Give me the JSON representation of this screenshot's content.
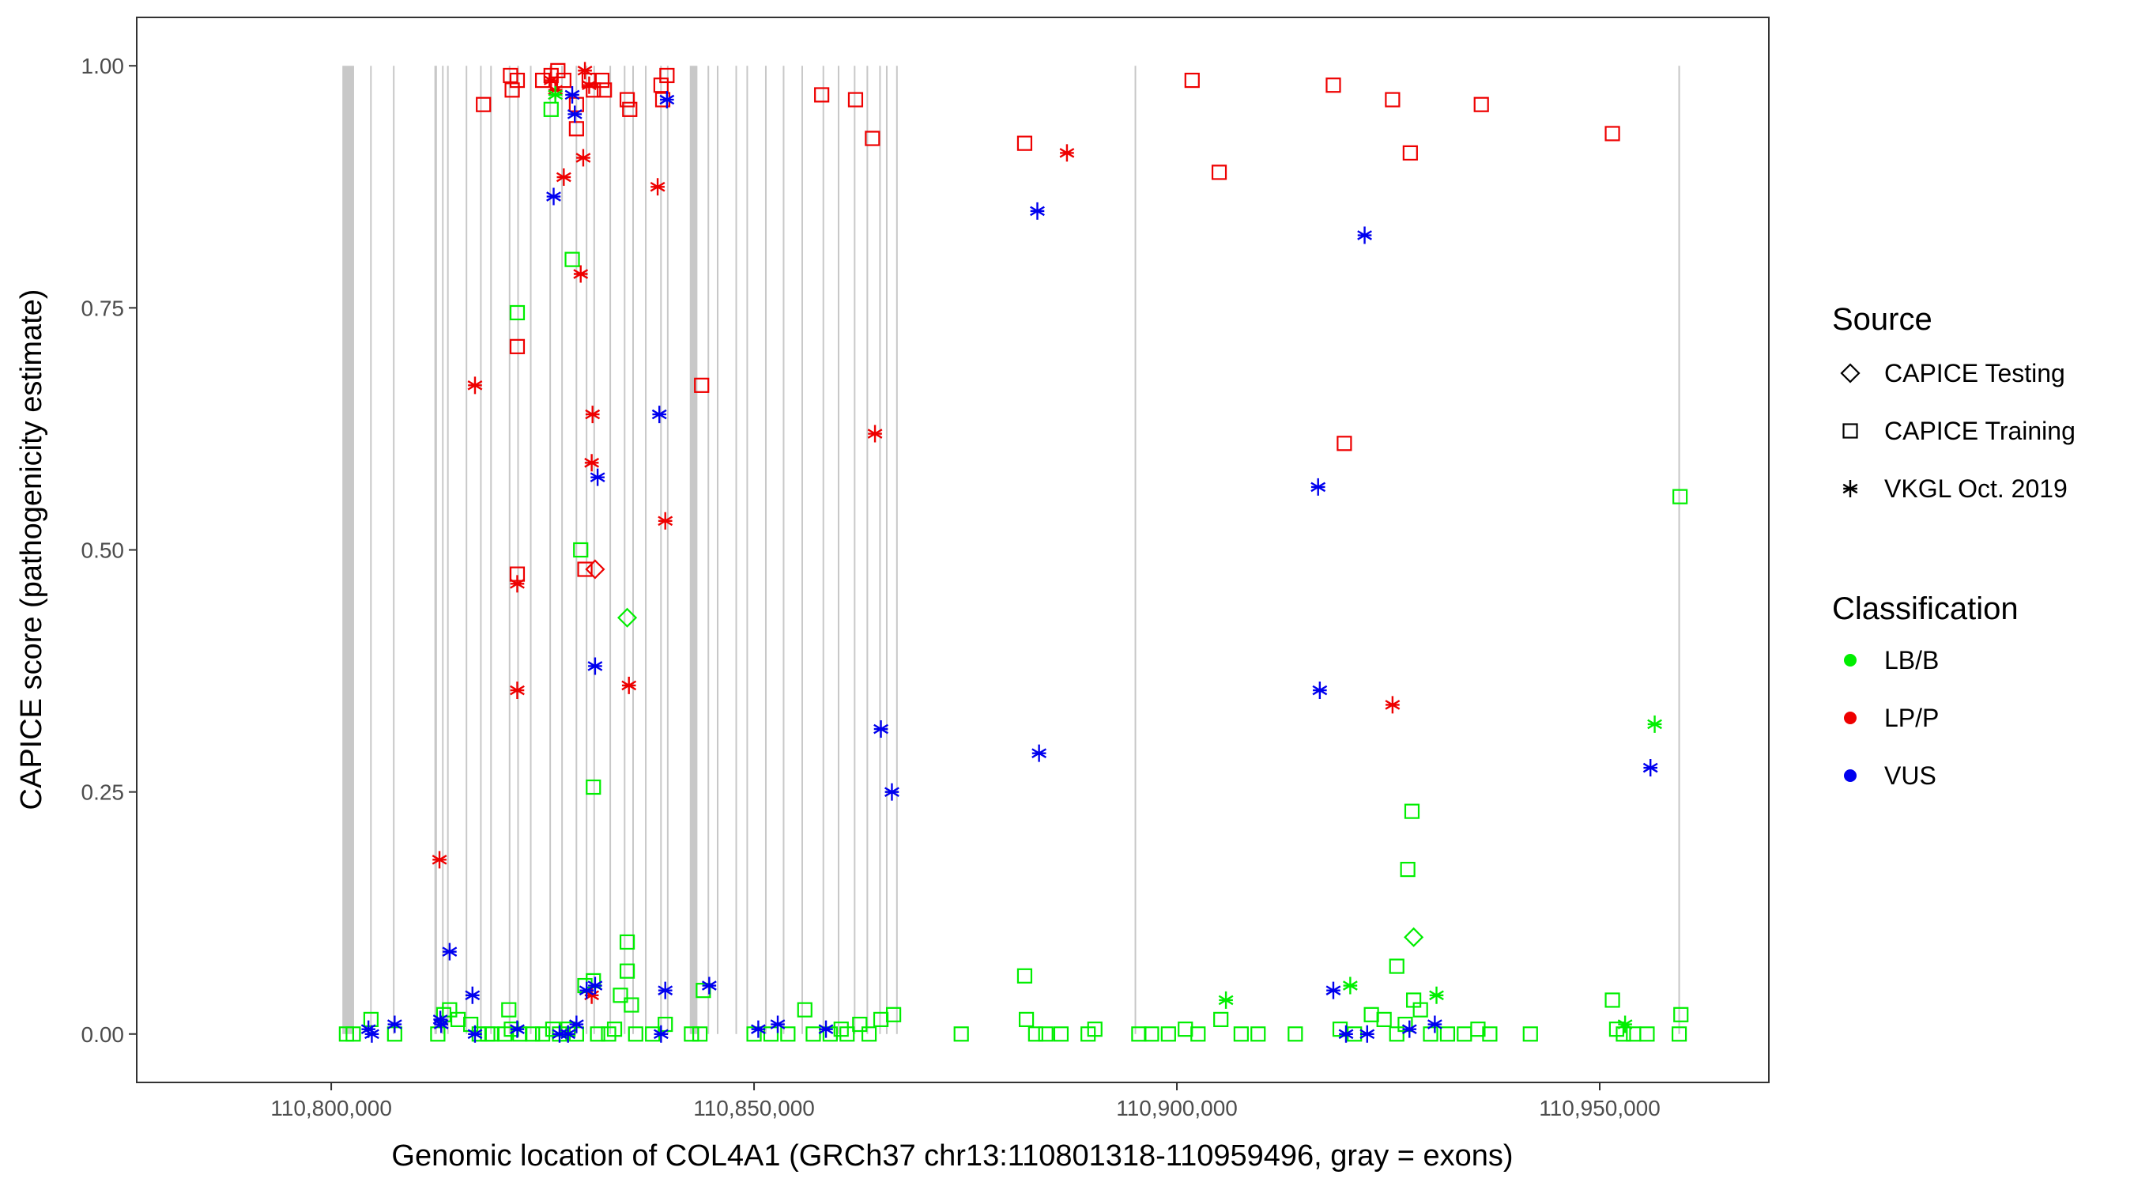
{
  "chart_data": {
    "type": "scatter",
    "title": "",
    "xlabel": "Genomic location of COL4A1 (GRCh37 chr13:110801318-110959496, gray = exons)",
    "ylabel": "CAPICE score (pathogenicity estimate)",
    "xlim": [
      110777000,
      110970000
    ],
    "ylim": [
      -0.05,
      1.05
    ],
    "x_ticks": [
      110800000,
      110850000,
      110900000,
      110950000
    ],
    "x_tick_labels": [
      "110,800,000",
      "110,850,000",
      "110,900,000",
      "110,950,000"
    ],
    "y_ticks": [
      0,
      0.25,
      0.5,
      0.75,
      1
    ],
    "y_tick_labels": [
      "0.00",
      "0.25",
      "0.50",
      "0.75",
      "1.00"
    ],
    "exons": [
      [
        110801318,
        110802700
      ],
      [
        110804600,
        110804750
      ],
      [
        110807300,
        110807450
      ],
      [
        110812200,
        110812500
      ],
      [
        110813100,
        110813250
      ],
      [
        110813700,
        110813850
      ],
      [
        110815900,
        110816050
      ],
      [
        110817600,
        110817750
      ],
      [
        110818800,
        110818950
      ],
      [
        110821000,
        110821150
      ],
      [
        110822000,
        110822150
      ],
      [
        110823500,
        110823650
      ],
      [
        110825800,
        110825950
      ],
      [
        110827200,
        110827350
      ],
      [
        110828900,
        110829050
      ],
      [
        110830100,
        110830250
      ],
      [
        110831000,
        110831150
      ],
      [
        110832900,
        110833050
      ],
      [
        110834600,
        110834750
      ],
      [
        110835600,
        110835750
      ],
      [
        110837100,
        110837250
      ],
      [
        110838900,
        110839050
      ],
      [
        110839700,
        110839850
      ],
      [
        110842400,
        110843300
      ],
      [
        110844500,
        110844650
      ],
      [
        110845600,
        110845750
      ],
      [
        110847800,
        110847950
      ],
      [
        110849100,
        110849250
      ],
      [
        110851300,
        110851450
      ],
      [
        110853400,
        110853550
      ],
      [
        110855600,
        110855750
      ],
      [
        110858100,
        110858250
      ],
      [
        110859900,
        110860050
      ],
      [
        110861800,
        110861950
      ],
      [
        110863300,
        110863450
      ],
      [
        110864800,
        110864950
      ],
      [
        110865600,
        110865750
      ],
      [
        110866800,
        110866950
      ],
      [
        110895000,
        110895150
      ],
      [
        110959300,
        110959496
      ]
    ],
    "series": [
      {
        "name": "CAPICE Testing",
        "shape": "diamond",
        "classification": "LP/P",
        "x": [
          110831200
        ],
        "y": [
          0.48
        ]
      },
      {
        "name": "CAPICE Testing",
        "shape": "diamond",
        "classification": "LB/B",
        "x": [
          110835000,
          110928000
        ],
        "y": [
          0.43,
          0.1
        ]
      },
      {
        "name": "CAPICE Training",
        "shape": "square",
        "classification": "LP/P",
        "x": [
          110818000,
          110821200,
          110821400,
          110822000,
          110825000,
          110826000,
          110826800,
          110827500,
          110829000,
          110830500,
          110831000,
          110832000,
          110832300,
          110835000,
          110835300,
          110839000,
          110839200,
          110839700,
          110843800,
          110858000,
          110862000,
          110864000,
          110882000,
          110901800,
          110905000,
          110918500,
          110925500,
          110927600,
          110936000,
          110951500,
          110829000,
          110822000,
          110822000,
          110830000,
          110919800
        ],
        "y": [
          0.96,
          0.99,
          0.975,
          0.985,
          0.985,
          0.99,
          0.995,
          0.985,
          0.935,
          0.985,
          0.975,
          0.985,
          0.975,
          0.965,
          0.955,
          0.98,
          0.965,
          0.99,
          0.67,
          0.97,
          0.965,
          0.925,
          0.92,
          0.985,
          0.89,
          0.98,
          0.965,
          0.91,
          0.96,
          0.93,
          0.96,
          0.71,
          0.475,
          0.48,
          0.61
        ]
      },
      {
        "name": "CAPICE Training",
        "shape": "square",
        "classification": "LB/B",
        "x": [
          110826000,
          110828500,
          110829500,
          110822000,
          110831000,
          110835000,
          110830000,
          110831000,
          110835000,
          110835500,
          110821000,
          110844000,
          110856000,
          110882000,
          110926000,
          110927800,
          110927300,
          110959500,
          110951500,
          110928000,
          110959600,
          110801800,
          110802600,
          110804700,
          110807500,
          110812600,
          110813300,
          110814000,
          110815000,
          110816500,
          110817500,
          110818500,
          110819000,
          110820500,
          110821300,
          110822300,
          110823800,
          110825000,
          110826200,
          110827000,
          110828000,
          110829000,
          110831500,
          110832800,
          110833500,
          110834200,
          110836000,
          110838000,
          110839500,
          110842600,
          110843600,
          110850000,
          110852000,
          110854000,
          110857000,
          110859000,
          110860300,
          110861000,
          110862500,
          110863600,
          110865000,
          110866500,
          110874500,
          110882200,
          110883300,
          110884500,
          110886300,
          110889500,
          110890300,
          110895500,
          110897000,
          110899000,
          110901000,
          110902500,
          110905200,
          110907600,
          110909600,
          110914000,
          110919300,
          110921000,
          110923000,
          110924500,
          110926000,
          110927000,
          110928800,
          110930000,
          110932000,
          110934000,
          110935600,
          110937000,
          110941800,
          110952000,
          110952800,
          110954000,
          110955600,
          110959400
        ],
        "y": [
          0.955,
          0.8,
          0.5,
          0.745,
          0.255,
          0.095,
          0.05,
          0.055,
          0.065,
          0.03,
          0.025,
          0.045,
          0.025,
          0.06,
          0.07,
          0.23,
          0.17,
          0.555,
          0.035,
          0.035,
          0.02,
          0.0,
          0.0,
          0.015,
          0.0,
          0.0,
          0.02,
          0.025,
          0.015,
          0.01,
          0.0,
          0.0,
          0.0,
          0.0,
          0.005,
          0.0,
          0.0,
          0.0,
          0.005,
          0.0,
          0.005,
          0.0,
          0.0,
          0.0,
          0.005,
          0.04,
          0.0,
          0.0,
          0.01,
          0.0,
          0.0,
          0.0,
          0.0,
          0.0,
          0.0,
          0.0,
          0.005,
          0.0,
          0.01,
          0.0,
          0.015,
          0.02,
          0.0,
          0.015,
          0.0,
          0.0,
          0.0,
          0.0,
          0.005,
          0.0,
          0.0,
          0.0,
          0.005,
          0.0,
          0.015,
          0.0,
          0.0,
          0.0,
          0.005,
          0.0,
          0.02,
          0.015,
          0.0,
          0.01,
          0.025,
          0.0,
          0.0,
          0.0,
          0.005,
          0.0,
          0.0,
          0.005,
          0.0,
          0.0,
          0.0,
          0.0
        ]
      },
      {
        "name": "VKGL Oct. 2019",
        "shape": "asterisk",
        "classification": "LP/P",
        "x": [
          110826000,
          110826500,
          110830000,
          110830500,
          110827500,
          110829800,
          110838600,
          110829500,
          110817000,
          110830900,
          110830800,
          110839500,
          110822000,
          110822000,
          110835200,
          110864300,
          110887000,
          110925500,
          110812800,
          110830800
        ],
        "y": [
          0.985,
          0.975,
          0.995,
          0.98,
          0.885,
          0.905,
          0.875,
          0.785,
          0.67,
          0.64,
          0.59,
          0.53,
          0.465,
          0.355,
          0.36,
          0.62,
          0.91,
          0.34,
          0.18,
          0.04
        ]
      },
      {
        "name": "VKGL Oct. 2019",
        "shape": "asterisk",
        "classification": "LB/B",
        "x": [
          110826500,
          110905800,
          110920500,
          110930700,
          110956500,
          110953000
        ],
        "y": [
          0.97,
          0.035,
          0.05,
          0.04,
          0.32,
          0.01
        ]
      },
      {
        "name": "VKGL Oct. 2019",
        "shape": "asterisk",
        "classification": "VUS",
        "x": [
          110828500,
          110839700,
          110828800,
          110826300,
          110838800,
          110831500,
          110831200,
          110865000,
          110866300,
          110883500,
          110883700,
          110922200,
          110916700,
          110916900,
          110956000,
          110814000,
          110816700,
          110812900,
          110830200,
          110831200,
          110839500,
          110844700,
          110804400,
          110807500,
          110822000,
          110827000,
          110829000,
          110839000,
          110850500,
          110852800,
          110858500,
          110918500,
          110920000,
          110922500,
          110927500,
          110930500,
          110813000,
          110817000,
          110828000,
          110804800
        ],
        "y": [
          0.97,
          0.965,
          0.95,
          0.865,
          0.64,
          0.575,
          0.38,
          0.315,
          0.25,
          0.85,
          0.29,
          0.825,
          0.565,
          0.355,
          0.275,
          0.085,
          0.04,
          0.015,
          0.045,
          0.05,
          0.045,
          0.05,
          0.005,
          0.01,
          0.005,
          0.0,
          0.01,
          0.0,
          0.005,
          0.01,
          0.005,
          0.045,
          0.0,
          0.0,
          0.005,
          0.01,
          0.01,
          0.0,
          0.0,
          0.0
        ]
      }
    ],
    "legend": {
      "placement": "right",
      "source_title": "Source",
      "source_items": [
        {
          "label": "CAPICE Testing",
          "shape": "diamond"
        },
        {
          "label": "CAPICE Training",
          "shape": "square"
        },
        {
          "label": "VKGL Oct. 2019",
          "shape": "asterisk"
        }
      ],
      "class_title": "Classification",
      "class_items": [
        {
          "label": "LB/B",
          "color": "#00ee00"
        },
        {
          "label": "LP/P",
          "color": "#ee0000"
        },
        {
          "label": "VUS",
          "color": "#0000ee"
        }
      ]
    },
    "colors": {
      "LB/B": "#00ee00",
      "LP/P": "#ee0000",
      "VUS": "#0000ee",
      "exon": "#c8c8c8"
    }
  }
}
